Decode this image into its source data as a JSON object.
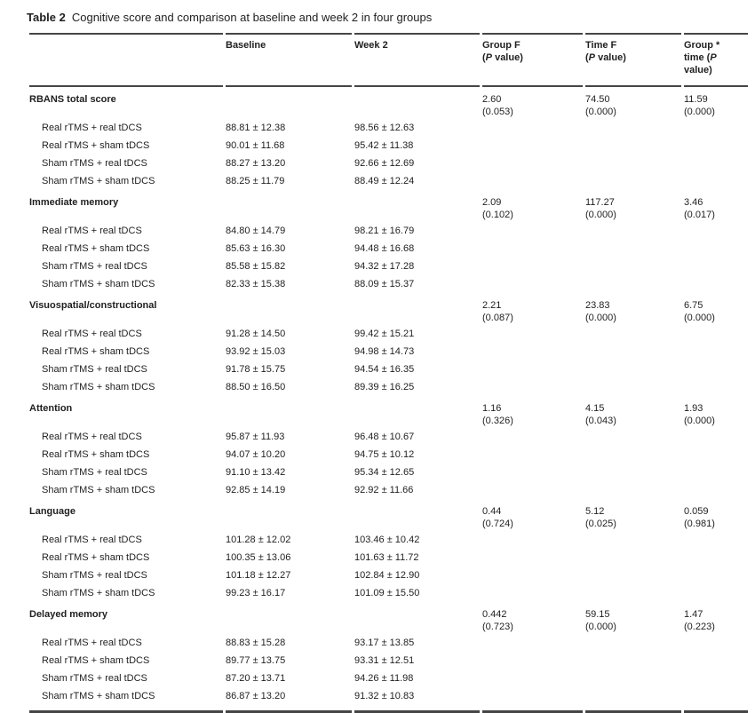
{
  "page": {
    "background": "#ffffff",
    "text_color": "#1f1f1f",
    "rule_color": "#454545"
  },
  "table": {
    "label": "Table 2",
    "caption": "Cognitive score and comparison at baseline and week 2 in four groups",
    "header": {
      "col_rows": [
        ""
      ],
      "col_baseline": [
        "Baseline"
      ],
      "col_week2": [
        "Week 2"
      ],
      "col_group_f": [
        "Group F",
        "(P value)"
      ],
      "col_time_f": [
        "Time F",
        "(P value)"
      ],
      "col_group_time": [
        "Group *",
        "time (P",
        "value)"
      ]
    },
    "sections": [
      {
        "name": "RBANS total score",
        "group_f": {
          "f": "2.60",
          "p": "(0.053)"
        },
        "time_f": {
          "f": "74.50",
          "p": "(0.000)"
        },
        "group_time": {
          "f": "11.59",
          "p": "(0.000)"
        },
        "rows": [
          {
            "label": "Real rTMS + real tDCS",
            "baseline": "88.81 ± 12.38",
            "week2": "98.56 ± 12.63"
          },
          {
            "label": "Real rTMS + sham tDCS",
            "baseline": "90.01 ± 11.68",
            "week2": "95.42 ± 11.38"
          },
          {
            "label": "Sham rTMS + real tDCS",
            "baseline": "88.27 ± 13.20",
            "week2": "92.66 ± 12.69"
          },
          {
            "label": "Sham rTMS + sham tDCS",
            "baseline": "88.25 ± 11.79",
            "week2": "88.49 ± 12.24"
          }
        ]
      },
      {
        "name": "Immediate memory",
        "group_f": {
          "f": "2.09",
          "p": "(0.102)"
        },
        "time_f": {
          "f": "117.27",
          "p": "(0.000)"
        },
        "group_time": {
          "f": "3.46",
          "p": "(0.017)"
        },
        "rows": [
          {
            "label": "Real rTMS + real tDCS",
            "baseline": "84.80 ± 14.79",
            "week2": "98.21 ± 16.79"
          },
          {
            "label": "Real rTMS + sham tDCS",
            "baseline": "85.63 ± 16.30",
            "week2": "94.48 ± 16.68"
          },
          {
            "label": "Sham rTMS + real tDCS",
            "baseline": "85.58 ± 15.82",
            "week2": "94.32 ± 17.28"
          },
          {
            "label": "Sham rTMS + sham tDCS",
            "baseline": "82.33 ± 15.38",
            "week2": "88.09 ± 15.37"
          }
        ]
      },
      {
        "name": "Visuospatial/constructional",
        "group_f": {
          "f": "2.21",
          "p": "(0.087)"
        },
        "time_f": {
          "f": "23.83",
          "p": "(0.000)"
        },
        "group_time": {
          "f": "6.75",
          "p": "(0.000)"
        },
        "rows": [
          {
            "label": "Real rTMS + real tDCS",
            "baseline": "91.28 ± 14.50",
            "week2": "99.42 ± 15.21"
          },
          {
            "label": "Real rTMS + sham tDCS",
            "baseline": "93.92 ± 15.03",
            "week2": "94.98 ± 14.73"
          },
          {
            "label": "Sham rTMS + real tDCS",
            "baseline": "91.78 ± 15.75",
            "week2": "94.54 ± 16.35"
          },
          {
            "label": "Sham rTMS + sham tDCS",
            "baseline": "88.50 ± 16.50",
            "week2": "89.39 ± 16.25"
          }
        ]
      },
      {
        "name": "Attention",
        "group_f": {
          "f": "1.16",
          "p": "(0.326)"
        },
        "time_f": {
          "f": "4.15",
          "p": "(0.043)"
        },
        "group_time": {
          "f": "1.93",
          "p": "(0.000)"
        },
        "rows": [
          {
            "label": "Real rTMS + real tDCS",
            "baseline": "95.87 ± 11.93",
            "week2": "96.48 ± 10.67"
          },
          {
            "label": "Real rTMS + sham tDCS",
            "baseline": "94.07 ± 10.20",
            "week2": "94.75 ± 10.12"
          },
          {
            "label": "Sham rTMS + real tDCS",
            "baseline": "91.10 ± 13.42",
            "week2": "95.34 ± 12.65"
          },
          {
            "label": "Sham rTMS + sham tDCS",
            "baseline": "92.85 ± 14.19",
            "week2": "92.92 ± 11.66"
          }
        ]
      },
      {
        "name": "Language",
        "group_f": {
          "f": "0.44",
          "p": "(0.724)"
        },
        "time_f": {
          "f": "5.12",
          "p": "(0.025)"
        },
        "group_time": {
          "f": "0.059",
          "p": "(0.981)"
        },
        "rows": [
          {
            "label": "Real rTMS + real tDCS",
            "baseline": "101.28 ± 12.02",
            "week2": "103.46 ± 10.42"
          },
          {
            "label": "Real rTMS + sham tDCS",
            "baseline": "100.35 ± 13.06",
            "week2": "101.63 ± 11.72"
          },
          {
            "label": "Sham rTMS + real tDCS",
            "baseline": "101.18 ± 12.27",
            "week2": "102.84 ± 12.90"
          },
          {
            "label": "Sham rTMS + sham tDCS",
            "baseline": "99.23 ± 16.17",
            "week2": "101.09 ± 15.50"
          }
        ]
      },
      {
        "name": "Delayed memory",
        "group_f": {
          "f": "0.442",
          "p": "(0.723)"
        },
        "time_f": {
          "f": "59.15",
          "p": "(0.000)"
        },
        "group_time": {
          "f": "1.47",
          "p": "(0.223)"
        },
        "rows": [
          {
            "label": "Real rTMS + real tDCS",
            "baseline": "88.83 ± 15.28",
            "week2": "93.17 ± 13.85"
          },
          {
            "label": "Real rTMS + sham tDCS",
            "baseline": "89.77 ± 13.75",
            "week2": "93.31 ± 12.51"
          },
          {
            "label": "Sham rTMS + real tDCS",
            "baseline": "87.20 ± 13.71",
            "week2": "94.26 ± 11.98"
          },
          {
            "label": "Sham rTMS + sham tDCS",
            "baseline": "86.87 ± 13.20",
            "week2": "91.32 ± 10.83"
          }
        ]
      }
    ]
  }
}
